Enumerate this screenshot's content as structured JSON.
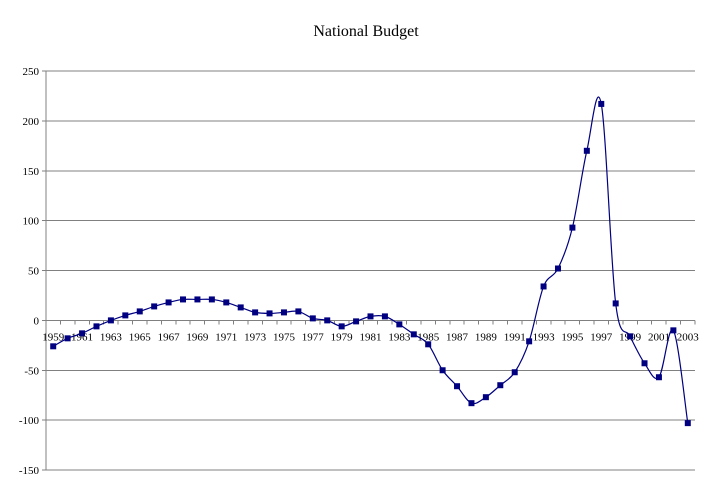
{
  "chart_data": {
    "type": "line",
    "title": "National Budget",
    "xlabel": "",
    "ylabel": "",
    "ylim": [
      -150,
      250
    ],
    "yticks": [
      250,
      200,
      150,
      100,
      50,
      0,
      -50,
      -100,
      -150
    ],
    "xtick_labels": [
      "1959",
      "1961",
      "1963",
      "1965",
      "1967",
      "1969",
      "1971",
      "1973",
      "1975",
      "1977",
      "1979",
      "1981",
      "1983",
      "1985",
      "1987",
      "1989",
      "1991",
      "1993",
      "1995",
      "1997",
      "1999",
      "2001",
      "2003"
    ],
    "grid": true,
    "legend": "none",
    "x": [
      1959,
      1960,
      1961,
      1962,
      1963,
      1964,
      1965,
      1966,
      1967,
      1968,
      1969,
      1970,
      1971,
      1972,
      1973,
      1974,
      1975,
      1976,
      1977,
      1978,
      1979,
      1980,
      1981,
      1982,
      1983,
      1984,
      1985,
      1986,
      1987,
      1988,
      1989,
      1990,
      1991,
      1992,
      1993,
      1994,
      1995,
      1996,
      1997,
      1998,
      1999,
      2000,
      2001,
      2002,
      2003
    ],
    "series": [
      {
        "values": [
          -26,
          -18,
          -13,
          -6,
          0,
          5,
          9,
          14,
          18,
          21,
          21,
          21,
          18,
          13,
          8,
          7,
          8,
          9,
          2,
          0,
          -6,
          -1,
          4,
          4,
          -4,
          -14,
          -24,
          -50,
          -66,
          -83,
          -77,
          -65,
          -52,
          -21,
          34,
          52,
          93,
          170,
          217,
          17,
          -16,
          -43,
          -57,
          -10,
          -103
        ],
        "color": "#000080"
      }
    ]
  }
}
